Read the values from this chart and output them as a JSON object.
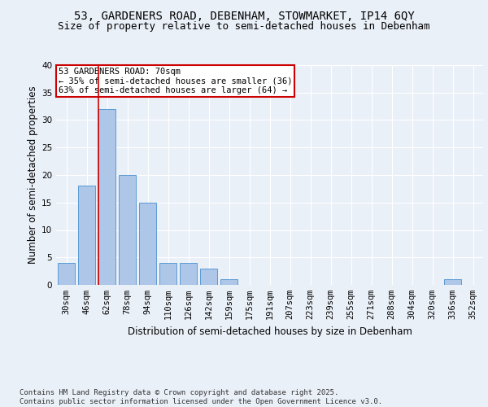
{
  "title1": "53, GARDENERS ROAD, DEBENHAM, STOWMARKET, IP14 6QY",
  "title2": "Size of property relative to semi-detached houses in Debenham",
  "xlabel": "Distribution of semi-detached houses by size in Debenham",
  "ylabel": "Number of semi-detached properties",
  "categories": [
    "30sqm",
    "46sqm",
    "62sqm",
    "78sqm",
    "94sqm",
    "110sqm",
    "126sqm",
    "142sqm",
    "159sqm",
    "175sqm",
    "191sqm",
    "207sqm",
    "223sqm",
    "239sqm",
    "255sqm",
    "271sqm",
    "288sqm",
    "304sqm",
    "320sqm",
    "336sqm",
    "352sqm"
  ],
  "values": [
    4,
    18,
    32,
    20,
    15,
    4,
    4,
    3,
    1,
    0,
    0,
    0,
    0,
    0,
    0,
    0,
    0,
    0,
    0,
    1,
    0
  ],
  "bar_color": "#aec6e8",
  "bar_edge_color": "#5b9bd5",
  "annotation_text": "53 GARDENERS ROAD: 70sqm\n← 35% of semi-detached houses are smaller (36)\n63% of semi-detached houses are larger (64) →",
  "annotation_box_color": "#ffffff",
  "annotation_box_edge": "#cc0000",
  "vline_color": "#cc0000",
  "vline_x": 1.575,
  "ylim": [
    0,
    40
  ],
  "yticks": [
    0,
    5,
    10,
    15,
    20,
    25,
    30,
    35,
    40
  ],
  "bg_color": "#eaf0f8",
  "plot_bg_color": "#eaf0f8",
  "footer": "Contains HM Land Registry data © Crown copyright and database right 2025.\nContains public sector information licensed under the Open Government Licence v3.0.",
  "title_fontsize": 10,
  "subtitle_fontsize": 9,
  "axis_label_fontsize": 8.5,
  "tick_fontsize": 7.5,
  "footer_fontsize": 6.5
}
